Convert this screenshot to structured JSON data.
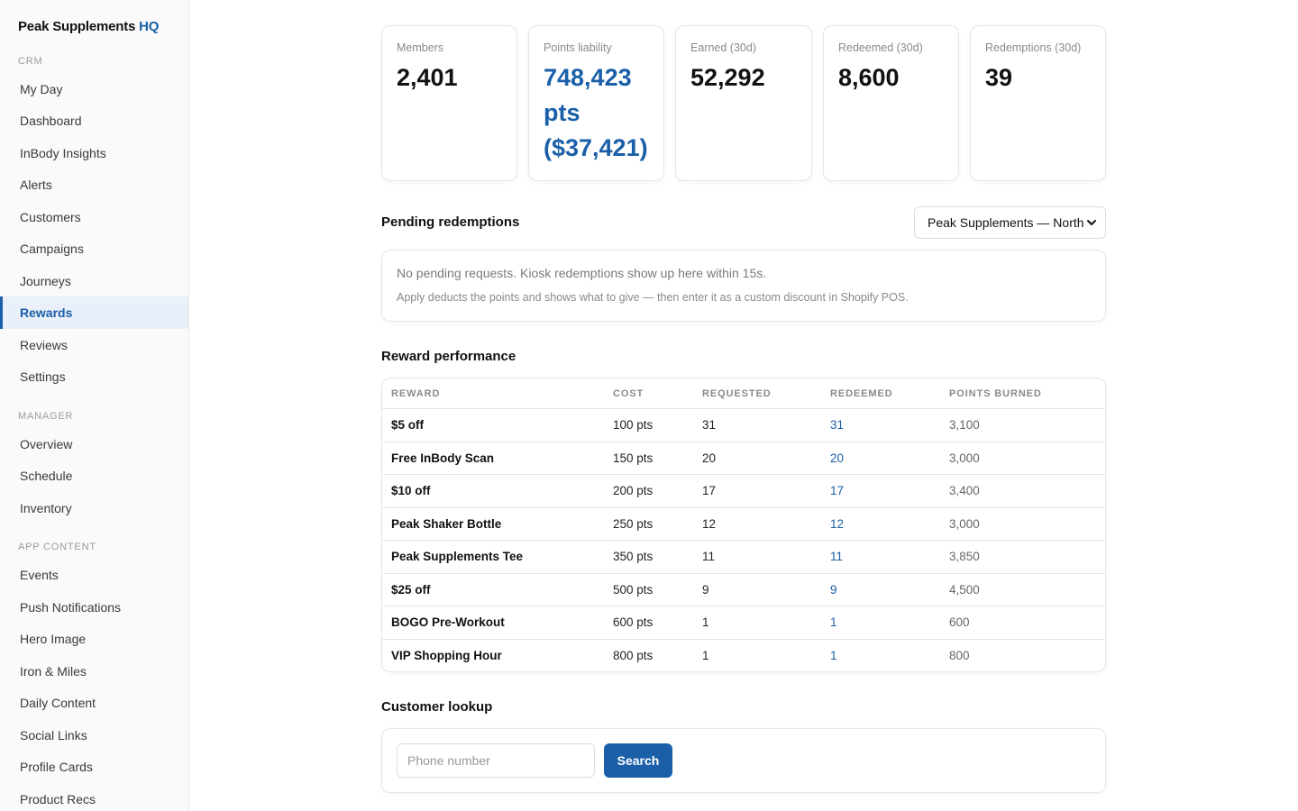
{
  "brand": {
    "name": "Peak Supplements",
    "suffix": "HQ"
  },
  "sidebar": {
    "sections": [
      {
        "label": "CRM",
        "items": [
          "My Day",
          "Dashboard",
          "InBody Insights",
          "Alerts",
          "Customers",
          "Campaigns",
          "Journeys",
          "Rewards",
          "Reviews",
          "Settings"
        ]
      },
      {
        "label": "MANAGER",
        "items": [
          "Overview",
          "Schedule",
          "Inventory"
        ]
      },
      {
        "label": "APP CONTENT",
        "items": [
          "Events",
          "Push Notifications",
          "Hero Image",
          "Iron & Miles",
          "Daily Content",
          "Social Links",
          "Profile Cards",
          "Product Recs"
        ]
      }
    ],
    "active_item": "Rewards"
  },
  "kpis": [
    {
      "label": "Members",
      "value": "2,401"
    },
    {
      "label": "Points liability",
      "value": "748,423 pts ($37,421)"
    },
    {
      "label": "Earned (30d)",
      "value": "52,292"
    },
    {
      "label": "Redeemed (30d)",
      "value": "8,600"
    },
    {
      "label": "Redemptions (30d)",
      "value": "39"
    }
  ],
  "pending": {
    "title": "Pending redemptions",
    "location_selected": "Peak Supplements — North",
    "empty_message": "No pending requests. Kiosk redemptions show up here within 15s.",
    "hint": "Apply deducts the points and shows what to give — then enter it as a custom discount in Shopify POS."
  },
  "performance": {
    "title": "Reward performance",
    "columns": [
      "REWARD",
      "COST",
      "REQUESTED",
      "REDEEMED",
      "POINTS BURNED"
    ],
    "rows": [
      {
        "reward": "$5 off",
        "cost": "100 pts",
        "requested": "31",
        "redeemed": "31",
        "burned": "3,100"
      },
      {
        "reward": "Free InBody Scan",
        "cost": "150 pts",
        "requested": "20",
        "redeemed": "20",
        "burned": "3,000"
      },
      {
        "reward": "$10 off",
        "cost": "200 pts",
        "requested": "17",
        "redeemed": "17",
        "burned": "3,400"
      },
      {
        "reward": "Peak Shaker Bottle",
        "cost": "250 pts",
        "requested": "12",
        "redeemed": "12",
        "burned": "3,000"
      },
      {
        "reward": "Peak Supplements Tee",
        "cost": "350 pts",
        "requested": "11",
        "redeemed": "11",
        "burned": "3,850"
      },
      {
        "reward": "$25 off",
        "cost": "500 pts",
        "requested": "9",
        "redeemed": "9",
        "burned": "4,500"
      },
      {
        "reward": "BOGO Pre-Workout",
        "cost": "600 pts",
        "requested": "1",
        "redeemed": "1",
        "burned": "600"
      },
      {
        "reward": "VIP Shopping Hour",
        "cost": "800 pts",
        "requested": "1",
        "redeemed": "1",
        "burned": "800"
      }
    ]
  },
  "lookup": {
    "title": "Customer lookup",
    "placeholder": "Phone number",
    "button_label": "Search"
  },
  "colors": {
    "accent": "#1a5fa8",
    "active_bg": "#e9f0f9"
  }
}
